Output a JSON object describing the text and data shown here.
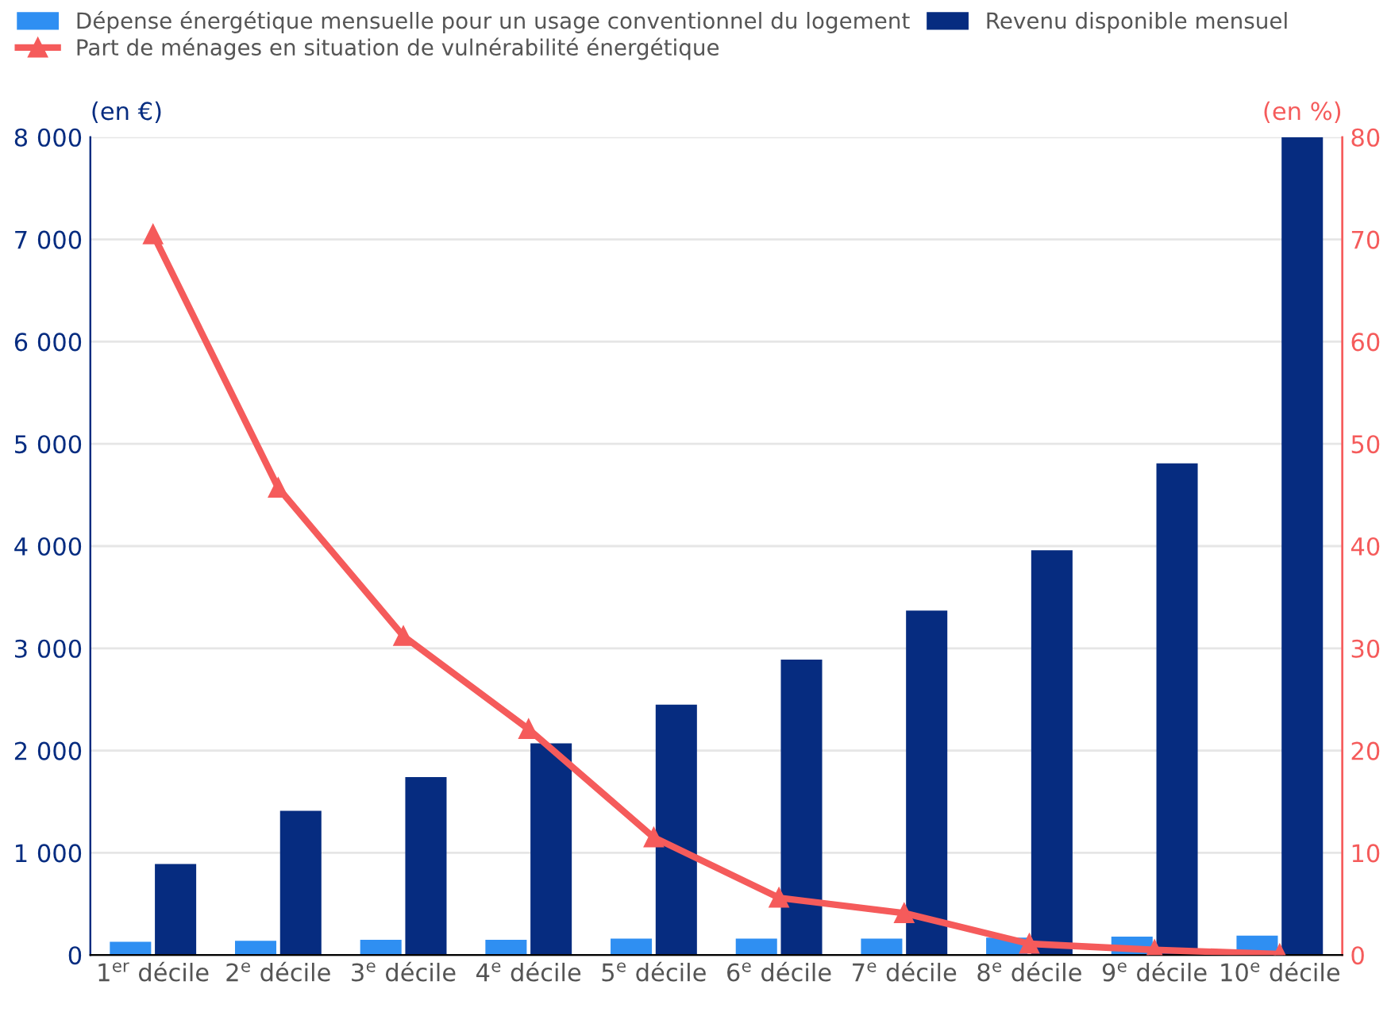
{
  "chart_data": {
    "type": "bar",
    "categories": [
      "1$^{er}$ décile",
      "2$^{e}$ décile",
      "3$^{e}$ décile",
      "4$^{e}$ décile",
      "5$^{e}$ décile",
      "6$^{e}$ décile",
      "7$^{e}$ décile",
      "8$^{e}$ décile",
      "9$^{e}$ décile",
      "10$^{e}$ décile"
    ],
    "series": [
      {
        "name": "Dépense énergétique mensuelle pour un usage conventionnel du logement",
        "color": "#2f8ff2",
        "values": [
          130,
          140,
          150,
          150,
          160,
          160,
          160,
          170,
          180,
          190
        ]
      },
      {
        "name": "Revenu disponible mensuel",
        "color": "#062c80",
        "values": [
          890,
          1410,
          1740,
          2070,
          2450,
          2890,
          3370,
          3960,
          4810,
          8000
        ]
      },
      {
        "name": "Part de ménages en situation de vulnérabilité énergétique",
        "color": "#f55b5b",
        "type": "line",
        "axis": "y2",
        "marker": "triangle",
        "values": [
          70.5,
          45.7,
          31.2,
          22.1,
          11.5,
          5.6,
          4.1,
          1.1,
          0.5,
          0.1
        ]
      }
    ],
    "ylabel": "(en €)",
    "y2label": "(en %)",
    "ylim": [
      0,
      8000
    ],
    "yticks": [
      0,
      {
        "value": 1000,
        "label": "1 000"
      },
      {
        "value": 2000,
        "label": "2 000"
      },
      {
        "value": 3000,
        "label": "3 000"
      },
      {
        "value": 4000,
        "label": "4 000"
      },
      {
        "value": 5000,
        "label": "5 000"
      },
      {
        "value": 6000,
        "label": "6 000"
      },
      {
        "value": 7000,
        "label": "7 000"
      },
      {
        "value": 8000,
        "label": "8 000"
      }
    ],
    "y2lim": [
      0,
      80
    ],
    "y2ticks": [
      0,
      10,
      20,
      30,
      40,
      50,
      60,
      70,
      80
    ],
    "grid": "y",
    "legend": "top"
  }
}
